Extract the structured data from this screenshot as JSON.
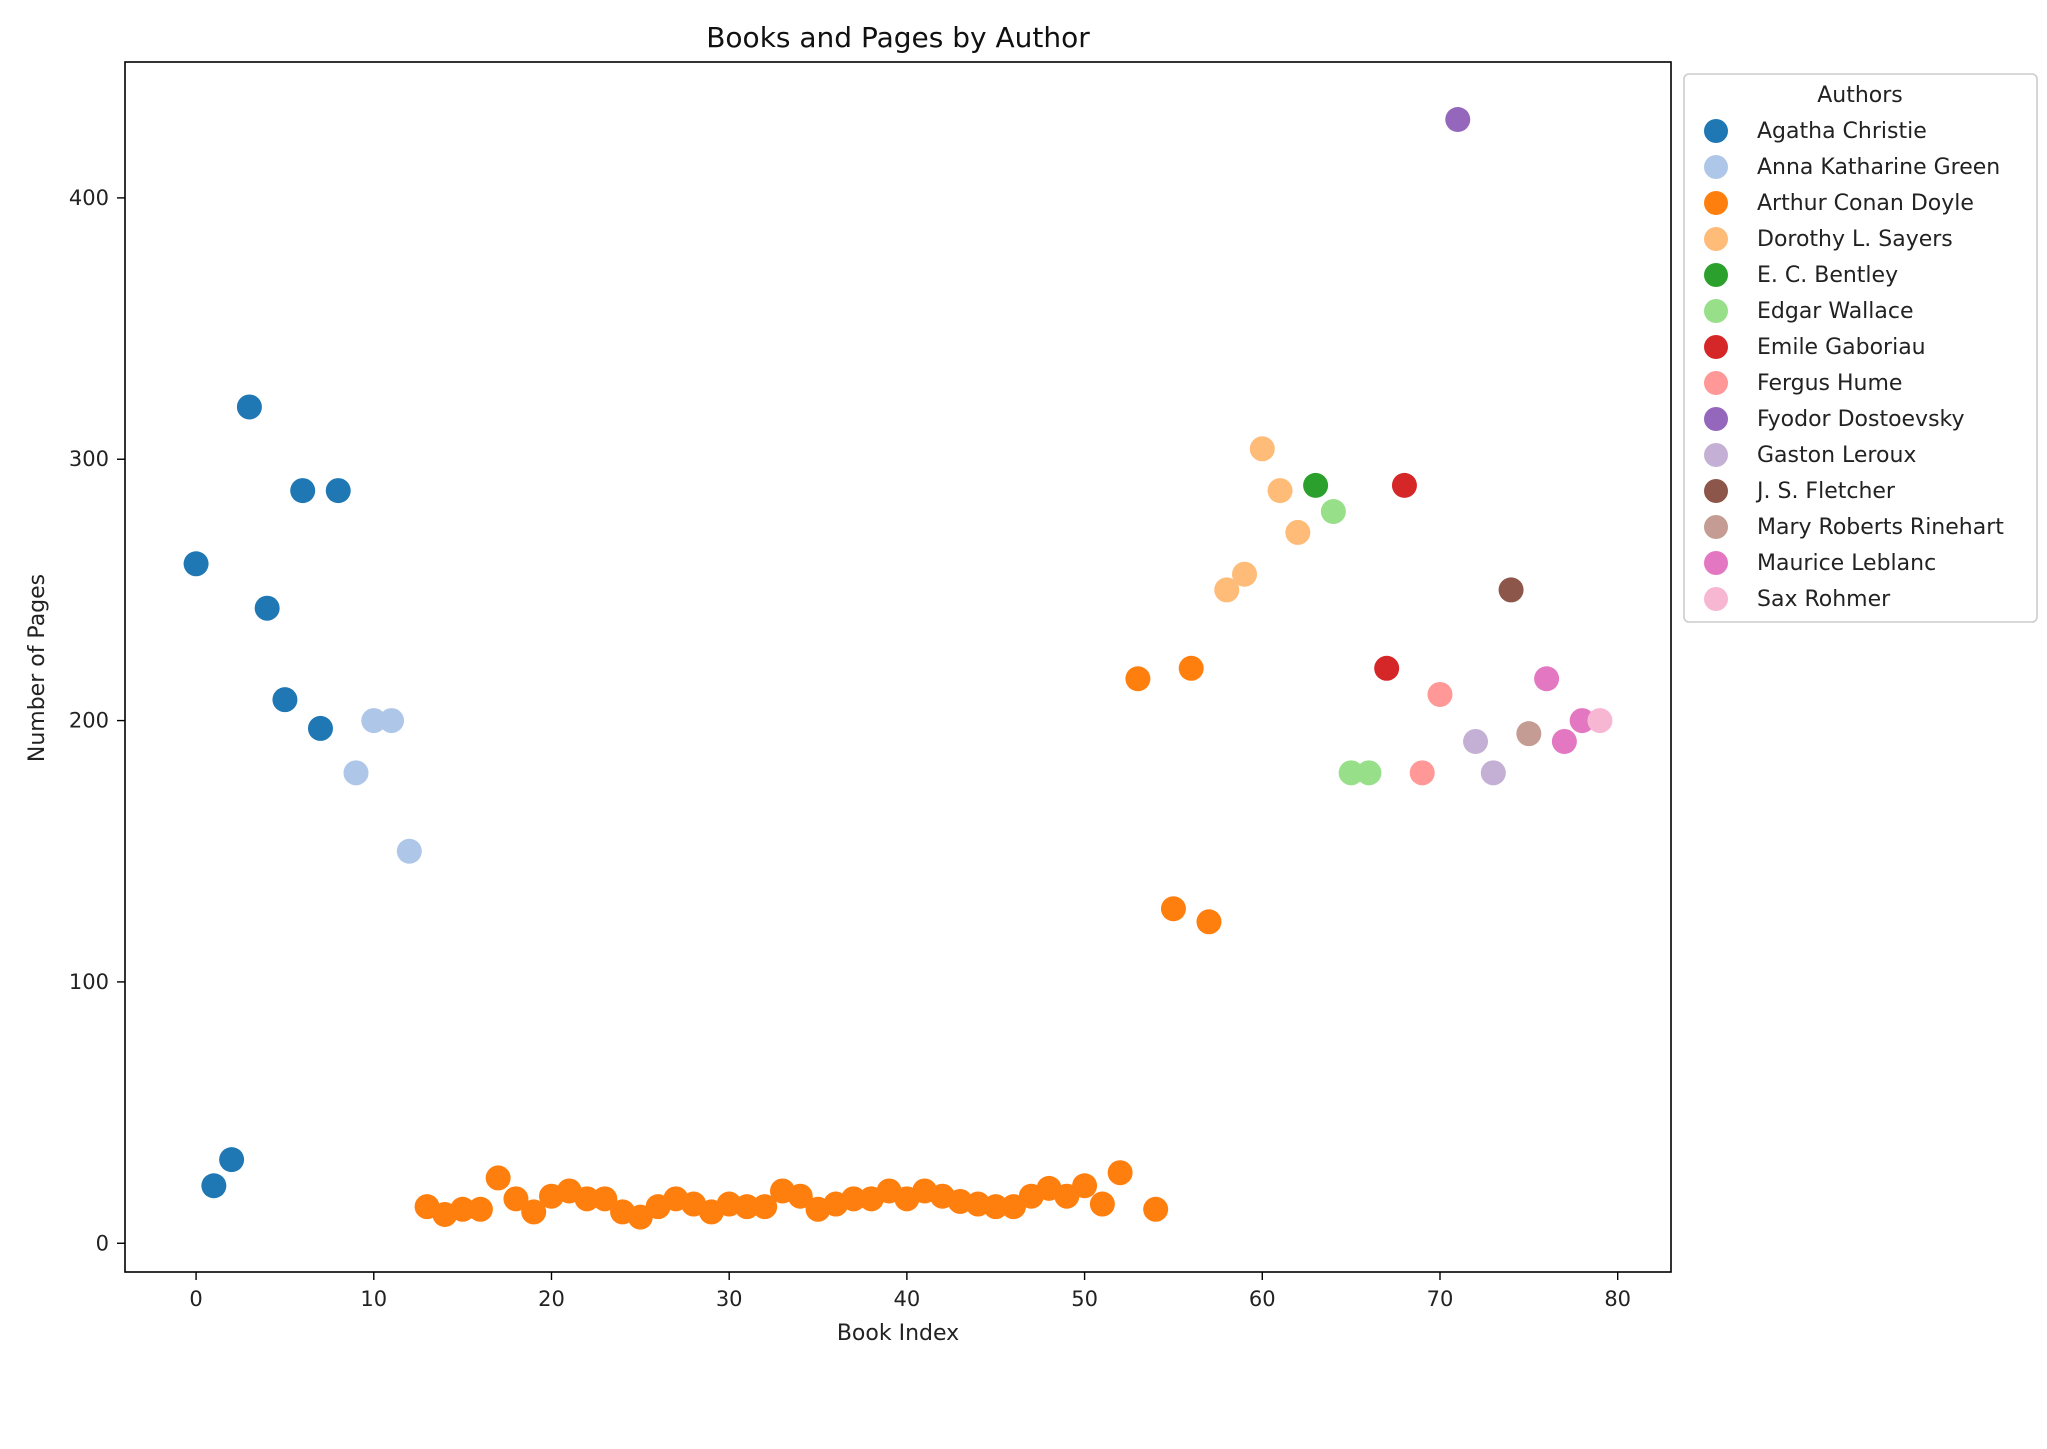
{
  "chart_data": {
    "type": "scatter",
    "title": "Books and Pages by Author",
    "xlabel": "Book Index",
    "ylabel": "Number of Pages",
    "xlim": [
      -4,
      83
    ],
    "ylim": [
      -11,
      452
    ],
    "xticks": [
      0,
      10,
      20,
      30,
      40,
      50,
      60,
      70,
      80
    ],
    "yticks": [
      0,
      100,
      200,
      300,
      400
    ],
    "grid": false,
    "legend": {
      "title": "Authors",
      "placement": "right-top"
    },
    "series": [
      {
        "name": "Agatha Christie",
        "color": "#1f77b4",
        "x": [
          0,
          1,
          2,
          3,
          4,
          5,
          6,
          7,
          8
        ],
        "y": [
          260,
          22,
          32,
          320,
          243,
          208,
          288,
          197,
          288
        ]
      },
      {
        "name": "Anna Katharine Green",
        "color": "#aec7e8",
        "x": [
          9,
          10,
          11,
          12
        ],
        "y": [
          180,
          200,
          200,
          150
        ]
      },
      {
        "name": "Arthur Conan Doyle",
        "color": "#ff7f0e",
        "x": [
          13,
          14,
          15,
          16,
          17,
          18,
          19,
          20,
          21,
          22,
          23,
          24,
          25,
          26,
          27,
          28,
          29,
          30,
          31,
          32,
          33,
          34,
          35,
          36,
          37,
          38,
          39,
          40,
          41,
          42,
          43,
          44,
          45,
          46,
          47,
          48,
          49,
          50,
          51,
          52,
          53,
          54,
          55,
          56,
          57
        ],
        "y": [
          14,
          11,
          13,
          13,
          25,
          17,
          12,
          18,
          20,
          17,
          17,
          12,
          10,
          14,
          17,
          15,
          12,
          15,
          14,
          14,
          20,
          18,
          13,
          15,
          17,
          17,
          20,
          17,
          20,
          18,
          16,
          15,
          14,
          14,
          18,
          21,
          18,
          22,
          15,
          27,
          216,
          13,
          128,
          220,
          123
        ]
      },
      {
        "name": "Dorothy L. Sayers",
        "color": "#ffbb78",
        "x": [
          58,
          59,
          60,
          61,
          62
        ],
        "y": [
          250,
          256,
          304,
          288,
          272
        ]
      },
      {
        "name": "E. C. Bentley",
        "color": "#2ca02c",
        "x": [
          63
        ],
        "y": [
          290
        ]
      },
      {
        "name": "Edgar Wallace",
        "color": "#98df8a",
        "x": [
          64,
          65,
          66
        ],
        "y": [
          280,
          180,
          180
        ]
      },
      {
        "name": "Emile Gaboriau",
        "color": "#d62728",
        "x": [
          67,
          68
        ],
        "y": [
          220,
          290
        ]
      },
      {
        "name": "Fergus Hume",
        "color": "#ff9896",
        "x": [
          69,
          70
        ],
        "y": [
          180,
          210
        ]
      },
      {
        "name": "Fyodor Dostoevsky",
        "color": "#9467bd",
        "x": [
          71
        ],
        "y": [
          430
        ]
      },
      {
        "name": "Gaston Leroux",
        "color": "#c5b0d5",
        "x": [
          72,
          73
        ],
        "y": [
          192,
          180
        ]
      },
      {
        "name": "J. S. Fletcher",
        "color": "#8c564b",
        "x": [
          74
        ],
        "y": [
          250
        ]
      },
      {
        "name": "Mary Roberts Rinehart",
        "color": "#c49c94",
        "x": [
          75
        ],
        "y": [
          195
        ]
      },
      {
        "name": "Maurice Leblanc",
        "color": "#e377c2",
        "x": [
          76,
          77,
          78
        ],
        "y": [
          216,
          192,
          200
        ]
      },
      {
        "name": "Sax Rohmer",
        "color": "#f7b6d2",
        "x": [
          79
        ],
        "y": [
          200
        ]
      }
    ]
  }
}
